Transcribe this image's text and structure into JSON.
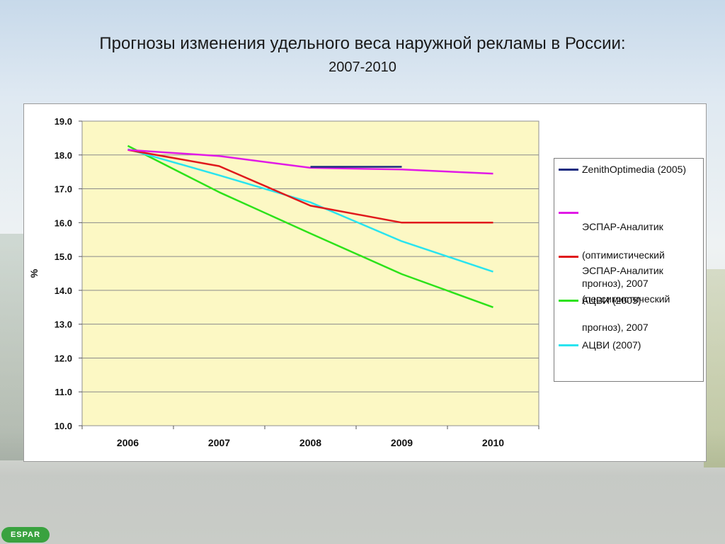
{
  "page": {
    "title": "Прогнозы изменения удельного веса наружной рекламы в России:",
    "subtitle": "2007-2010",
    "logo_text": "ESPAR"
  },
  "chart_data": {
    "type": "line",
    "ylabel": "%",
    "xlabel": "",
    "categories": [
      "2006",
      "2007",
      "2008",
      "2009",
      "2010"
    ],
    "ylim": [
      10.0,
      19.0
    ],
    "yticks": [
      "10.0",
      "11.0",
      "12.0",
      "13.0",
      "14.0",
      "15.0",
      "16.0",
      "17.0",
      "18.0",
      "19.0"
    ],
    "grid": true,
    "plot_background": "#fcf8c4",
    "legend_position": "right",
    "series": [
      {
        "name": "ZenithOptimedia (2005)",
        "color": "#1a2b80",
        "points": [
          [
            2008,
            17.65
          ],
          [
            2009,
            17.65
          ]
        ]
      },
      {
        "name": "ЭСПАР-Аналитик (оптимистический прогноз), 2007",
        "legend_lines": [
          "ЭСПАР-Аналитик",
          "(оптимистический",
          "прогноз), 2007"
        ],
        "color": "#e11ae6",
        "points": [
          [
            2006,
            18.15
          ],
          [
            2007,
            17.97
          ],
          [
            2008,
            17.62
          ],
          [
            2009,
            17.57
          ],
          [
            2010,
            17.45
          ]
        ]
      },
      {
        "name": "ЭСПАР-Аналитик (пессимистический прогноз), 2007",
        "legend_lines": [
          "ЭСПАР-Аналитик",
          "(пессимистический",
          "прогноз), 2007"
        ],
        "color": "#e0191c",
        "points": [
          [
            2006,
            18.15
          ],
          [
            2007,
            17.67
          ],
          [
            2008,
            16.5
          ],
          [
            2009,
            16.0
          ],
          [
            2010,
            16.0
          ]
        ]
      },
      {
        "name": "АЦВИ (2005)",
        "color": "#2de21a",
        "points": [
          [
            2006,
            18.27
          ],
          [
            2007,
            16.9
          ],
          [
            2008,
            15.68
          ],
          [
            2009,
            14.48
          ],
          [
            2010,
            13.5
          ]
        ]
      },
      {
        "name": "АЦВИ (2007)",
        "color": "#29e4ef",
        "points": [
          [
            2006,
            18.17
          ],
          [
            2007,
            17.4
          ],
          [
            2008,
            16.6
          ],
          [
            2009,
            15.45
          ],
          [
            2010,
            14.55
          ]
        ]
      }
    ]
  }
}
